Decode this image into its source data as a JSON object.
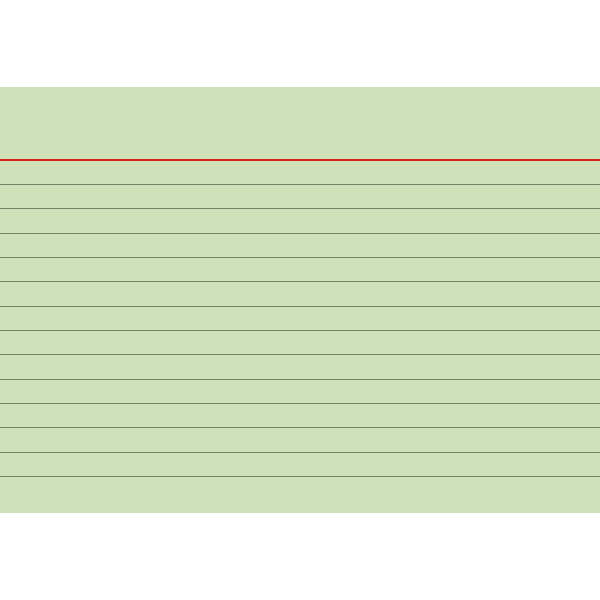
{
  "card": {
    "background_color": "#cfe1b8",
    "header_line_color": "#d8221e",
    "rule_color": "#6f8766",
    "ruled_line_count": 13
  }
}
